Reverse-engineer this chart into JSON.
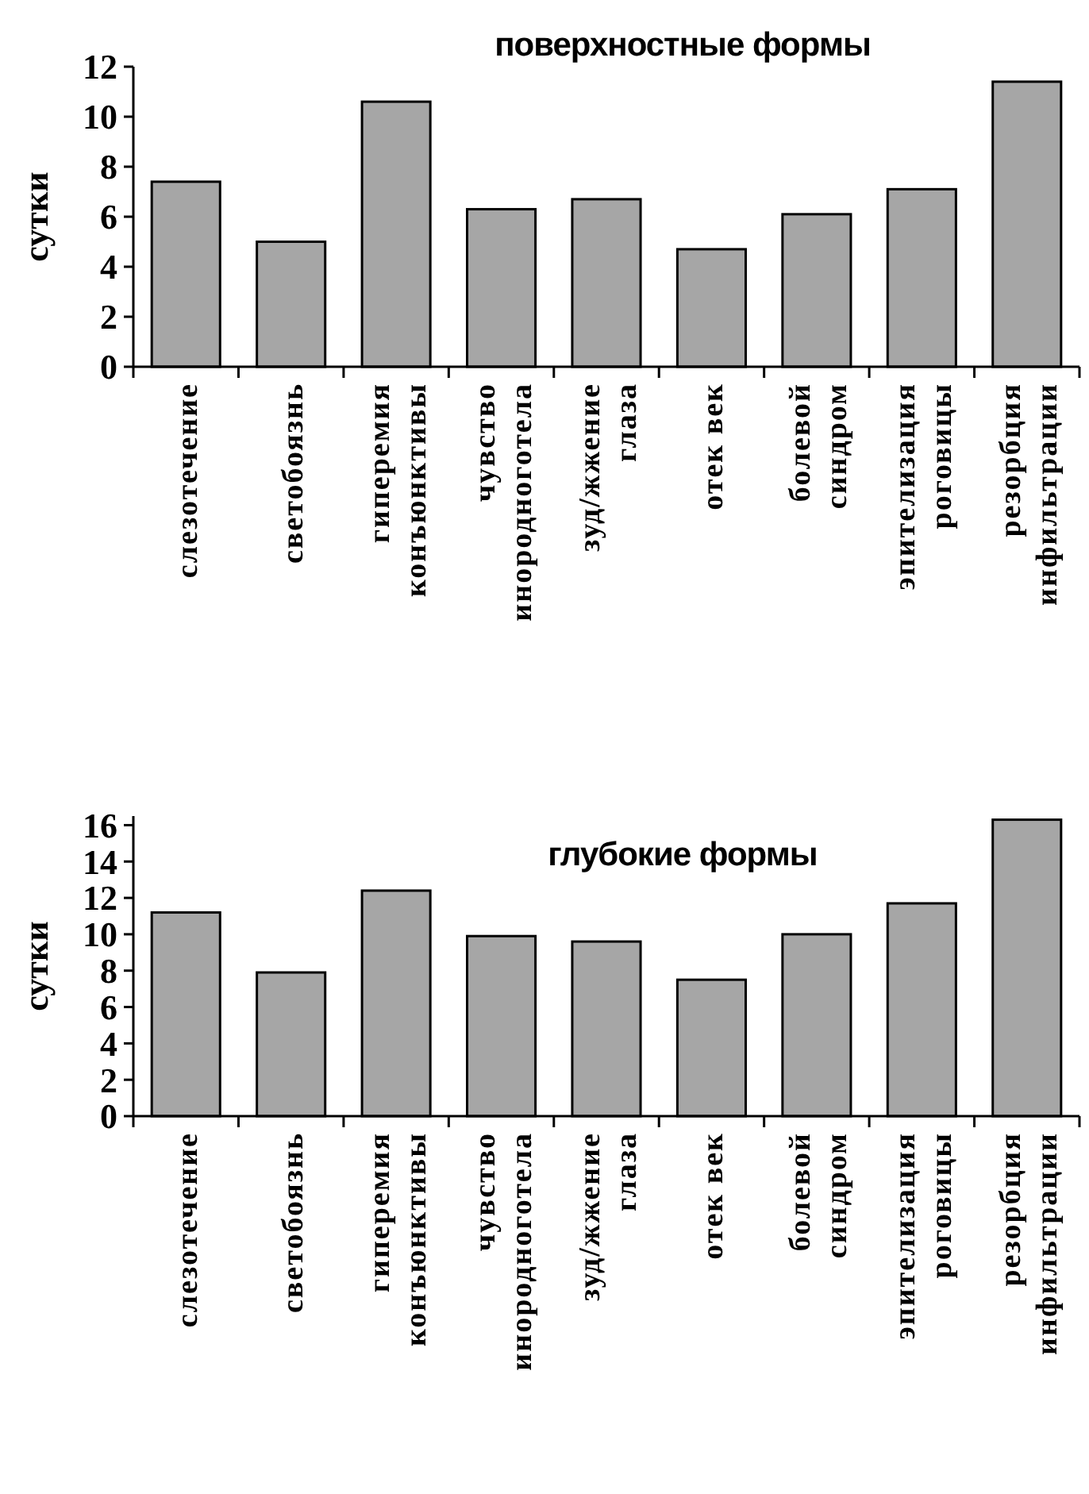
{
  "chart_data": [
    {
      "type": "bar",
      "title": "поверхностные формы",
      "ylabel": "сутки",
      "categories": [
        "слезотечение",
        "светобоязнь",
        "гиперемия\nконъюнктивы",
        "чувство\nинородноготела",
        "зуд/жжение\nглаза",
        "отек век",
        "болевой\nсиндром",
        "эпителизация\nроговицы",
        "резорбция\nинфильтрации"
      ],
      "values": [
        7.4,
        5.0,
        10.6,
        6.3,
        6.7,
        4.7,
        6.1,
        7.1,
        11.4
      ],
      "color": "#a6a6a6",
      "ylim": [
        0,
        12
      ],
      "yticks": [
        0,
        2,
        4,
        6,
        8,
        10,
        12
      ],
      "grid": false
    },
    {
      "type": "bar",
      "title": "глубокие формы",
      "ylabel": "сутки",
      "categories": [
        "слезотечение",
        "светобоязнь",
        "гиперемия\nконъюнктивы",
        "чувство\nинородноготела",
        "зуд/жжение\nглаза",
        "отек век",
        "болевой\nсиндром",
        "эпителизация\nроговицы",
        "резорбция\nинфильтрации"
      ],
      "values": [
        11.2,
        7.9,
        12.4,
        9.9,
        9.6,
        7.5,
        10.0,
        11.7,
        16.3
      ],
      "color": "#a6a6a6",
      "ylim": [
        0,
        16.5
      ],
      "yticks": [
        0,
        2,
        4,
        6,
        8,
        10,
        12,
        14,
        16
      ],
      "grid": false
    }
  ]
}
